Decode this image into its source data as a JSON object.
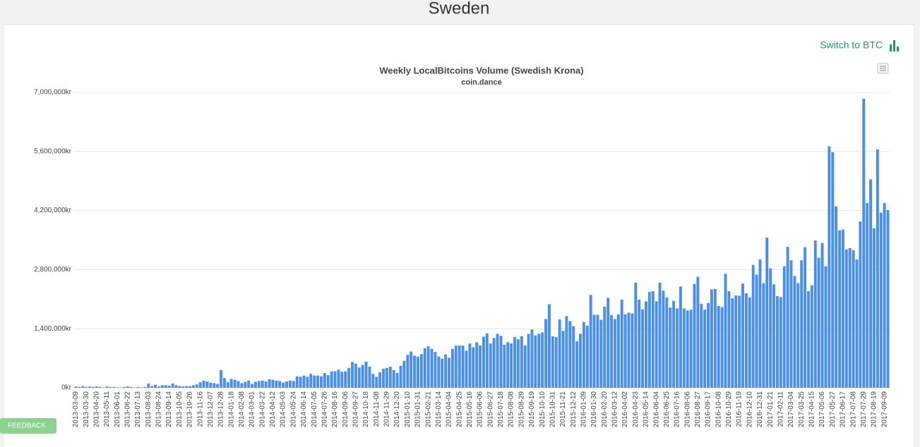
{
  "page_title": "Sweden",
  "switch_label": "Switch to BTC",
  "feedback": "FEEDBACK",
  "chart_data": {
    "type": "bar",
    "title": "Weekly LocalBitcoins Volume (Swedish Krona)",
    "subtitle": "coin.dance",
    "color": "#4a8fe7",
    "grid": true,
    "ylim": [
      0,
      7000000
    ],
    "yticks": [
      {
        "value": 0,
        "label": "0kr"
      },
      {
        "value": 1400000,
        "label": "1,400,000kr"
      },
      {
        "value": 2800000,
        "label": "2,800,000kr"
      },
      {
        "value": 4200000,
        "label": "4,200,000kr"
      },
      {
        "value": 5600000,
        "label": "5,600,000kr"
      },
      {
        "value": 7000000,
        "label": "7,000,000kr"
      }
    ],
    "categories": [
      "2013-03-09",
      null,
      null,
      "2013-03-30",
      null,
      null,
      "2013-04-20",
      null,
      null,
      "2013-05-11",
      null,
      null,
      "2013-06-01",
      null,
      null,
      "2013-06-22",
      null,
      null,
      "2013-07-13",
      null,
      null,
      "2013-08-03",
      null,
      null,
      "2013-08-24",
      null,
      null,
      "2013-09-14",
      null,
      null,
      "2013-10-05",
      null,
      null,
      "2013-10-26",
      null,
      null,
      "2013-11-16",
      null,
      null,
      "2013-12-07",
      null,
      null,
      "2013-12-28",
      null,
      null,
      "2014-01-18",
      null,
      null,
      "2014-02-08",
      null,
      null,
      "2014-03-01",
      null,
      null,
      "2014-03-22",
      null,
      null,
      "2014-04-12",
      null,
      null,
      "2014-05-03",
      null,
      null,
      "2014-05-24",
      null,
      null,
      "2014-06-14",
      null,
      null,
      "2014-07-05",
      null,
      null,
      "2014-07-26",
      null,
      null,
      "2014-08-16",
      null,
      null,
      "2014-09-06",
      null,
      null,
      "2014-09-27",
      null,
      null,
      "2014-10-18",
      null,
      null,
      "2014-11-08",
      null,
      null,
      "2014-11-29",
      null,
      null,
      "2014-12-20",
      null,
      null,
      "2015-01-10",
      null,
      null,
      "2015-01-31",
      null,
      null,
      "2015-02-21",
      null,
      null,
      "2015-03-14",
      null,
      null,
      "2015-04-04",
      null,
      null,
      "2015-04-25",
      null,
      null,
      "2015-05-16",
      null,
      null,
      "2015-06-06",
      null,
      null,
      "2015-06-27",
      null,
      null,
      "2015-07-18",
      null,
      null,
      "2015-08-08",
      null,
      null,
      "2015-08-29",
      null,
      null,
      "2015-09-19",
      null,
      null,
      "2015-10-10",
      null,
      null,
      "2015-10-31",
      null,
      null,
      "2015-11-21",
      null,
      null,
      "2015-12-12",
      null,
      null,
      "2016-01-09",
      null,
      null,
      "2016-01-30",
      null,
      null,
      "2016-02-20",
      null,
      null,
      "2016-03-12",
      null,
      null,
      "2016-04-02",
      null,
      null,
      "2016-04-23",
      null,
      null,
      "2016-05-14",
      null,
      null,
      "2016-06-04",
      null,
      null,
      "2016-06-25",
      null,
      null,
      "2016-07-16",
      null,
      null,
      "2016-08-06",
      null,
      null,
      "2016-08-27",
      null,
      null,
      "2016-09-17",
      null,
      null,
      "2016-10-08",
      null,
      null,
      "2016-10-29",
      null,
      null,
      "2016-11-19",
      null,
      null,
      "2016-12-10",
      null,
      null,
      "2016-12-31",
      null,
      null,
      "2017-01-21",
      null,
      null,
      "2017-02-11",
      null,
      null,
      "2017-03-04",
      null,
      null,
      "2017-03-25",
      null,
      null,
      "2017-04-15",
      null,
      null,
      "2017-05-06",
      null,
      null,
      "2017-05-27",
      null,
      null,
      "2017-06-17",
      null,
      null,
      "2017-07-08",
      null,
      null,
      "2017-07-29",
      null,
      null,
      "2017-08-19",
      null,
      null,
      "2017-09-09",
      null
    ],
    "values": [
      30000,
      20000,
      40000,
      20000,
      30000,
      20000,
      30000,
      20000,
      10000,
      30000,
      20000,
      20000,
      10000,
      10000,
      20000,
      30000,
      20000,
      10000,
      20000,
      10000,
      20000,
      100000,
      40000,
      70000,
      30000,
      60000,
      60000,
      50000,
      100000,
      60000,
      40000,
      30000,
      40000,
      40000,
      60000,
      80000,
      130000,
      170000,
      150000,
      120000,
      110000,
      90000,
      420000,
      230000,
      130000,
      210000,
      190000,
      160000,
      110000,
      140000,
      170000,
      90000,
      140000,
      160000,
      170000,
      150000,
      200000,
      190000,
      170000,
      160000,
      120000,
      150000,
      170000,
      160000,
      270000,
      260000,
      290000,
      260000,
      330000,
      290000,
      290000,
      270000,
      350000,
      300000,
      390000,
      390000,
      430000,
      380000,
      390000,
      470000,
      610000,
      570000,
      480000,
      540000,
      620000,
      500000,
      330000,
      260000,
      370000,
      450000,
      470000,
      500000,
      420000,
      350000,
      520000,
      640000,
      780000,
      860000,
      760000,
      740000,
      800000,
      940000,
      980000,
      920000,
      850000,
      740000,
      690000,
      790000,
      710000,
      920000,
      1000000,
      1000000,
      1000000,
      880000,
      1050000,
      960000,
      1080000,
      1000000,
      1210000,
      1290000,
      1050000,
      1180000,
      1280000,
      1230000,
      1020000,
      1080000,
      1050000,
      1200000,
      1150000,
      1220000,
      1000000,
      1280000,
      1380000,
      1240000,
      1280000,
      1310000,
      1630000,
      1980000,
      1220000,
      1200000,
      1620000,
      1350000,
      1700000,
      1580000,
      1460000,
      1100000,
      1280000,
      1560000,
      1470000,
      2200000,
      1730000,
      1730000,
      1610000,
      1920000,
      2130000,
      1720000,
      1630000,
      1740000,
      2090000,
      1740000,
      1780000,
      1760000,
      2490000,
      2090000,
      1860000,
      2050000,
      2270000,
      2290000,
      2050000,
      2490000,
      2300000,
      2140000,
      1900000,
      2060000,
      1880000,
      2400000,
      1880000,
      1830000,
      1850000,
      2460000,
      2630000,
      1990000,
      1850000,
      2010000,
      2330000,
      2340000,
      1940000,
      1910000,
      2700000,
      2290000,
      2120000,
      2190000,
      2180000,
      2470000,
      2240000,
      2140000,
      2910000,
      2680000,
      3040000,
      2480000,
      3560000,
      2830000,
      2450000,
      2170000,
      2150000,
      2880000,
      3340000,
      3020000,
      2650000,
      2480000,
      3020000,
      3330000,
      2290000,
      2430000,
      3490000,
      3080000,
      3430000,
      2880000,
      5720000,
      5580000,
      4300000,
      3730000,
      3750000,
      3280000,
      3310000,
      3260000,
      3040000,
      3940000,
      6850000,
      4380000,
      4940000,
      3780000,
      5650000,
      4150000,
      4380000,
      4210000
    ]
  }
}
